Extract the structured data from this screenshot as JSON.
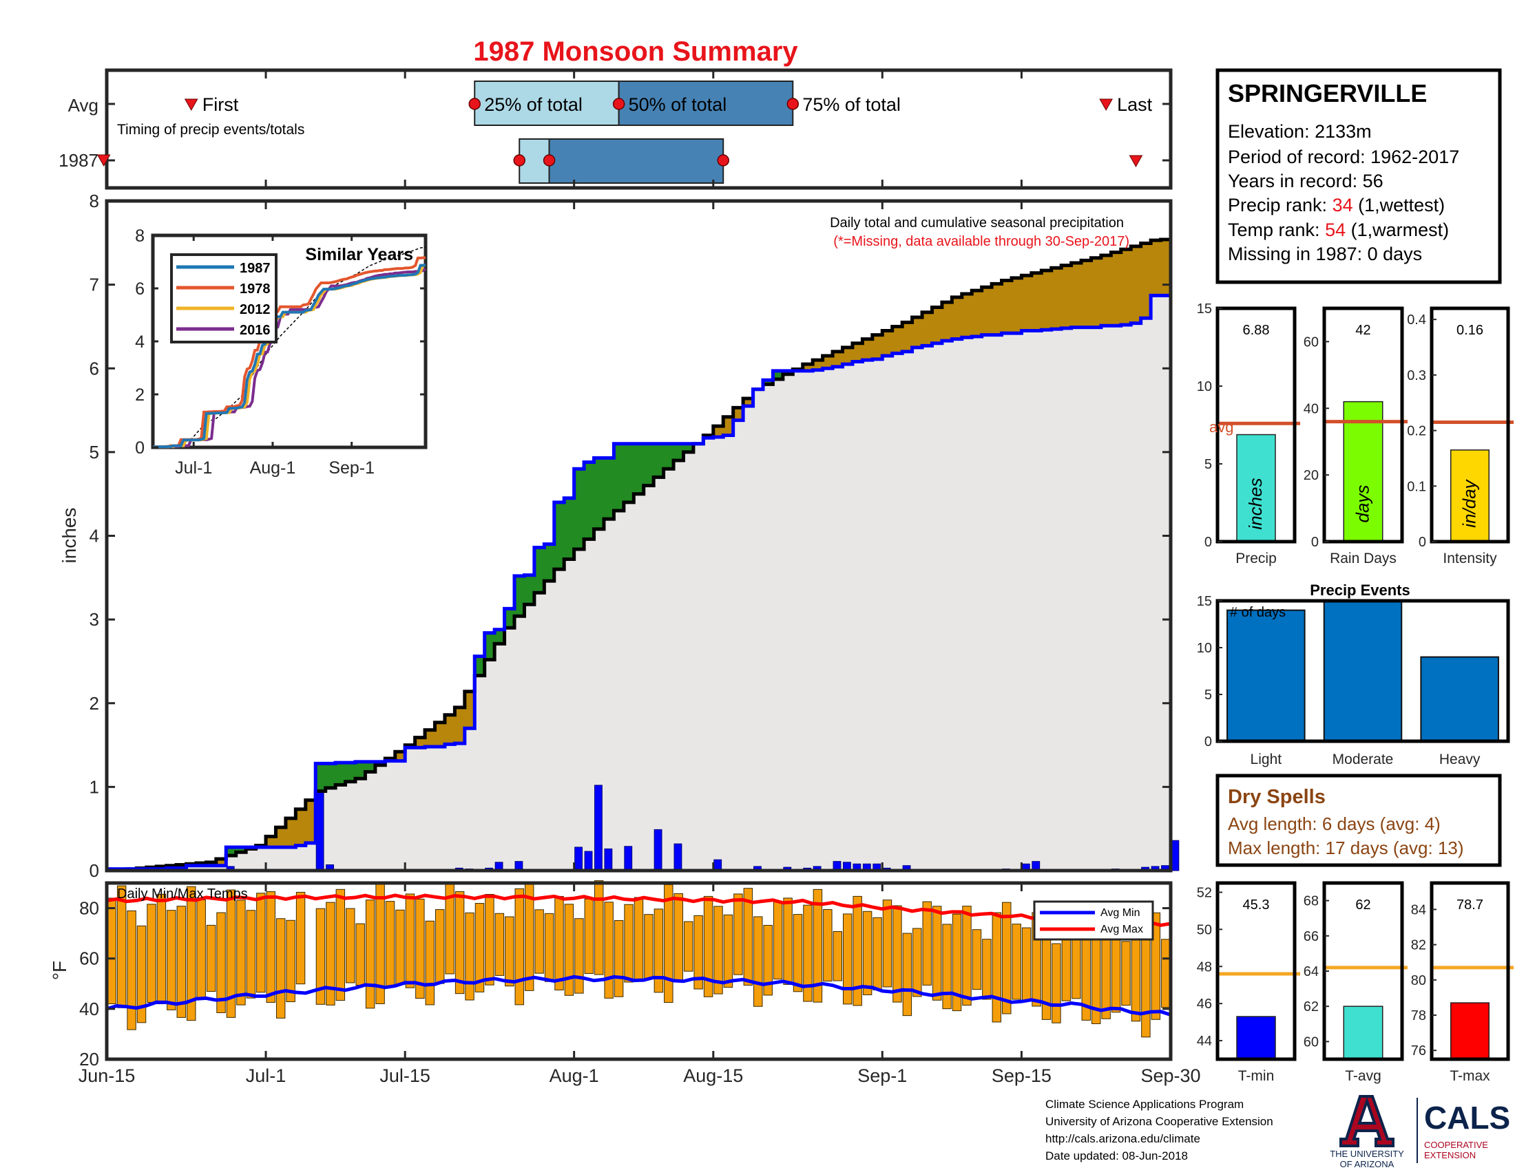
{
  "title": "1987 Monsoon Summary",
  "timing": {
    "rows": [
      "Avg",
      "1987"
    ],
    "first_label": "First",
    "last_label": "Last",
    "note": "Timing of precip events/totals",
    "pct_labels": [
      "25% of total",
      "50% of total",
      "75% of total"
    ],
    "avg_days": {
      "first": 8.5,
      "p25": 37.0,
      "p50": 51.5,
      "p75": 69.0,
      "last": 100.5
    },
    "yr_days": {
      "first": -0.3,
      "p25": 41.5,
      "p50": 44.5,
      "p75": 62.0,
      "last": 103.5
    }
  },
  "station": {
    "name": "SPRINGERVILLE",
    "elevation": "Elevation: 2133m",
    "period": "Period of record: 1962-2017",
    "years": "Years in record: 56",
    "precip_rank_label": "Precip rank: ",
    "precip_rank_value": "34",
    "precip_rank_note": " (1,wettest)",
    "temp_rank_label": "Temp rank: ",
    "temp_rank_value": "54",
    "temp_rank_note": " (1,warmest)",
    "missing": "Missing in 1987: 0 days"
  },
  "colors": {
    "title": "#e8141b",
    "blue_line": "#0000ff",
    "green_fill": "#228b22",
    "brown_fill": "#b8860b",
    "gray_fill": "#e8e7e6",
    "bar_blue": "#0070c0",
    "orange": "#f59e0b",
    "avg_line": "#d2502a",
    "dry_text": "#8b4513"
  },
  "main_chart": {
    "type": "area",
    "ylabel": "inches",
    "yticks": [
      0,
      1,
      2,
      3,
      4,
      5,
      6,
      7,
      8
    ],
    "ylim": [
      0,
      8
    ],
    "xticks": [
      "Jun-15",
      "Jul-1",
      "Jul-15",
      "Aug-1",
      "Aug-15",
      "Sep-1",
      "Sep-15",
      "Sep-30"
    ],
    "note": "Daily total and cumulative seasonal precipitation",
    "missing_note": "(*=Missing, data available through 30-Sep-2017)"
  },
  "inset": {
    "title": "Similar Years",
    "yticks": [
      0,
      2,
      4,
      6,
      8
    ],
    "xticks": [
      "Jul-1",
      "Aug-1",
      "Sep-1"
    ],
    "legend": [
      "1987",
      "1978",
      "2012",
      "2016"
    ],
    "colors": [
      "#1f77b4",
      "#e4572e",
      "#f0b429",
      "#7b2d8e"
    ]
  },
  "temp_chart": {
    "type": "bar",
    "title": "Daily Min/Max Temps",
    "ylabel": "°F",
    "yticks": [
      20,
      40,
      60,
      80
    ],
    "legend": [
      "Avg Min",
      "Avg Max"
    ]
  },
  "stats": {
    "precip": {
      "value": "6.88",
      "label": "Precip",
      "unit": "inches",
      "avg_label": "avg",
      "yticks": [
        0,
        5,
        10,
        15
      ],
      "val": 6.88,
      "avg": 7.6
    },
    "rain_days": {
      "value": "42",
      "label": "Rain Days",
      "unit": "days",
      "yticks": [
        0,
        20,
        40,
        60
      ],
      "val": 42,
      "avg": 36
    },
    "intensity": {
      "value": "0.16",
      "label": "Intensity",
      "unit": "in/day",
      "yticks": [
        0,
        0.1,
        0.2,
        0.3,
        0.4
      ],
      "val": 0.165,
      "avg": 0.215
    }
  },
  "events": {
    "type": "bar",
    "title": "Precip Events",
    "annot": "# of days",
    "categories": [
      "Light",
      "Moderate",
      "Heavy"
    ],
    "values": [
      14,
      15,
      9
    ],
    "yticks": [
      0,
      5,
      10,
      15
    ],
    "ylim": [
      0,
      15
    ]
  },
  "dry_spells": {
    "title": "Dry Spells",
    "avg_length": "Avg length: 6 days (avg: 4)",
    "max_length": "Max length: 17 days (avg: 13)"
  },
  "temps_summary": {
    "tmin": {
      "value": "45.3",
      "label": "T-min",
      "yticks": [
        44,
        46,
        48,
        50,
        52
      ],
      "val": 45.3,
      "avg": 47.6,
      "ylim": [
        43,
        52.5
      ]
    },
    "tavg": {
      "value": "62",
      "label": "T-avg",
      "yticks": [
        60,
        62,
        64,
        66,
        68
      ],
      "val": 62,
      "avg": 64.2,
      "ylim": [
        59,
        69
      ]
    },
    "tmax": {
      "value": "78.7",
      "label": "T-max",
      "yticks": [
        76,
        78,
        80,
        82,
        84
      ],
      "val": 78.7,
      "avg": 80.7,
      "ylim": [
        75.5,
        85.5
      ]
    }
  },
  "footer": {
    "line1": "Climate Science Applications Program",
    "line2": "University of Arizona Cooperative Extension",
    "line3": "http://cals.arizona.edu/climate",
    "line4": " Date updated: 08-Jun-2018",
    "logo_ua": "THE UNIVERSITY OF ARIZONA",
    "logo_cals": "CALS",
    "logo_coop": "COOPERATIVE EXTENSION"
  },
  "chart_data": [
    {
      "type": "area",
      "title": "Daily total and cumulative seasonal precipitation",
      "ylabel": "inches",
      "ylim": [
        0,
        8
      ],
      "xlim_days": [
        0,
        107
      ],
      "series": [
        {
          "name": "1987 cumulative",
          "points": [
            [
              0,
              0.02
            ],
            [
              6,
              0.03
            ],
            [
              8,
              0.06
            ],
            [
              12,
              0.28
            ],
            [
              19,
              0.3
            ],
            [
              20,
              0.33
            ],
            [
              21,
              1.28
            ],
            [
              23,
              1.29
            ],
            [
              25,
              1.3
            ],
            [
              28,
              1.31
            ],
            [
              30,
              1.47
            ],
            [
              32,
              1.48
            ],
            [
              34,
              1.51
            ],
            [
              35,
              1.52
            ],
            [
              36,
              1.7
            ],
            [
              37,
              2.56
            ],
            [
              38,
              2.84
            ],
            [
              39,
              2.88
            ],
            [
              40,
              3.13
            ],
            [
              41,
              3.52
            ],
            [
              42,
              3.53
            ],
            [
              43,
              3.86
            ],
            [
              44,
              3.9
            ],
            [
              45,
              4.4
            ],
            [
              46,
              4.45
            ],
            [
              47,
              4.8
            ],
            [
              48,
              4.88
            ],
            [
              49,
              4.93
            ],
            [
              51,
              5.1
            ],
            [
              60,
              5.17
            ],
            [
              61,
              5.18
            ],
            [
              62,
              5.2
            ],
            [
              63,
              5.38
            ],
            [
              64,
              5.55
            ],
            [
              65,
              5.75
            ],
            [
              66,
              5.86
            ],
            [
              67,
              5.97
            ],
            [
              71,
              5.98
            ],
            [
              72,
              6.0
            ],
            [
              73,
              6.02
            ],
            [
              74,
              6.05
            ],
            [
              75,
              6.08
            ],
            [
              76,
              6.1
            ],
            [
              77,
              6.11
            ],
            [
              78,
              6.15
            ],
            [
              79,
              6.18
            ],
            [
              80,
              6.2
            ],
            [
              81,
              6.25
            ],
            [
              82,
              6.27
            ],
            [
              83,
              6.3
            ],
            [
              84,
              6.33
            ],
            [
              85,
              6.35
            ],
            [
              86,
              6.37
            ],
            [
              87,
              6.38
            ],
            [
              88,
              6.4
            ],
            [
              90,
              6.42
            ],
            [
              92,
              6.45
            ],
            [
              94,
              6.46
            ],
            [
              95,
              6.47
            ],
            [
              96,
              6.48
            ],
            [
              97,
              6.49
            ],
            [
              100,
              6.51
            ],
            [
              102,
              6.52
            ],
            [
              103,
              6.54
            ],
            [
              104,
              6.6
            ],
            [
              105,
              6.87
            ],
            [
              107,
              6.88
            ]
          ]
        },
        {
          "name": "Avg cumulative",
          "points": [
            [
              0,
              0
            ],
            [
              10,
              0.1
            ],
            [
              15,
              0.3
            ],
            [
              21,
              0.95
            ],
            [
              25,
              1.1
            ],
            [
              30,
              1.5
            ],
            [
              35,
              1.95
            ],
            [
              40,
              2.9
            ],
            [
              45,
              3.6
            ],
            [
              50,
              4.2
            ],
            [
              55,
              4.7
            ],
            [
              60,
              5.2
            ],
            [
              65,
              5.75
            ],
            [
              70,
              6.05
            ],
            [
              75,
              6.3
            ],
            [
              80,
              6.55
            ],
            [
              85,
              6.85
            ],
            [
              90,
              7.05
            ],
            [
              95,
              7.2
            ],
            [
              100,
              7.35
            ],
            [
              105,
              7.53
            ],
            [
              107,
              7.55
            ]
          ]
        }
      ],
      "daily_precip": [
        [
          12,
          0.05
        ],
        [
          21,
          0.96
        ],
        [
          22,
          0.07
        ],
        [
          23,
          0.01
        ],
        [
          25,
          0.01
        ],
        [
          28,
          0.01
        ],
        [
          31,
          0.01
        ],
        [
          34,
          0.01
        ],
        [
          35,
          0.03
        ],
        [
          36,
          0.02
        ],
        [
          38,
          0.03
        ],
        [
          39,
          0.1
        ],
        [
          41,
          0.11
        ],
        [
          42,
          0.01
        ],
        [
          45,
          0.01
        ],
        [
          47,
          0.28
        ],
        [
          48,
          0.23
        ],
        [
          49,
          1.02
        ],
        [
          50,
          0.26
        ],
        [
          52,
          0.29
        ],
        [
          54,
          0.01
        ],
        [
          55,
          0.49
        ],
        [
          56,
          0.01
        ],
        [
          57,
          0.32
        ],
        [
          58,
          0.01
        ],
        [
          61,
          0.13
        ],
        [
          63,
          0.01
        ],
        [
          65,
          0.05
        ],
        [
          68,
          0.04
        ],
        [
          70,
          0.03
        ],
        [
          71,
          0.05
        ],
        [
          73,
          0.11
        ],
        [
          74,
          0.1
        ],
        [
          75,
          0.08
        ],
        [
          76,
          0.08
        ],
        [
          77,
          0.08
        ],
        [
          78,
          0.03
        ],
        [
          80,
          0.06
        ],
        [
          89,
          0.01
        ],
        [
          90,
          0.02
        ],
        [
          92,
          0.08
        ],
        [
          93,
          0.11
        ],
        [
          100,
          0.01
        ],
        [
          101,
          0.02
        ],
        [
          104,
          0.04
        ],
        [
          105,
          0.05
        ],
        [
          106,
          0.06
        ],
        [
          107,
          0.36
        ]
      ]
    },
    {
      "type": "bar",
      "title": "Daily Min/Max Temps",
      "ylabel": "°F",
      "ylim": [
        20,
        90
      ],
      "xlim_days": [
        0,
        107
      ]
    }
  ]
}
